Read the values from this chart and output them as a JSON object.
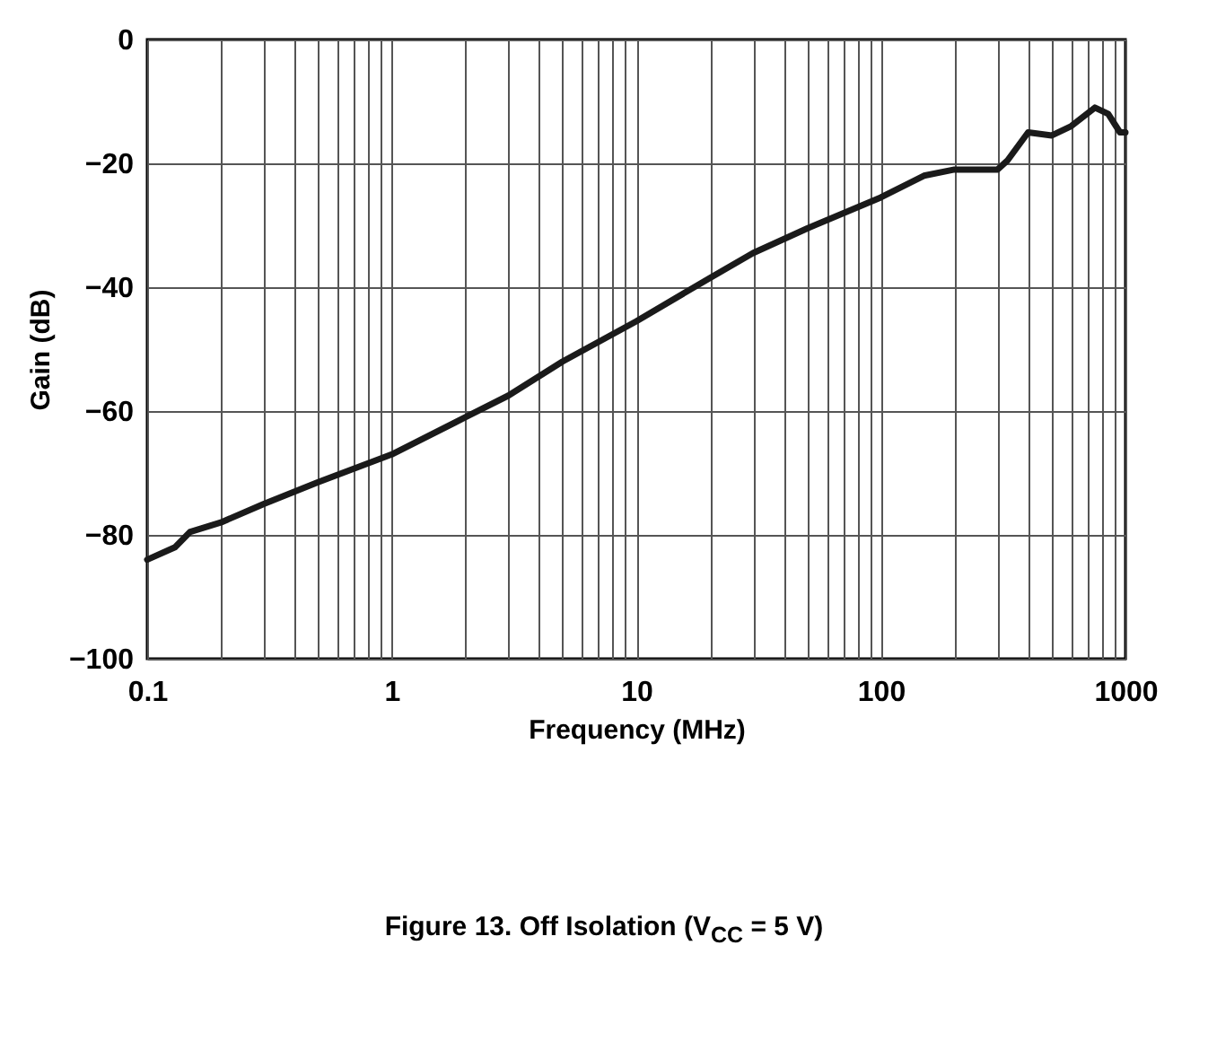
{
  "chart_data": {
    "type": "line",
    "title": "Figure 13. Off Isolation (V$_{CC}$ = 5 V)",
    "xlabel": "Frequency (MHz)",
    "ylabel": "Gain (dB)",
    "log": "x",
    "grid": true,
    "marker": "none",
    "line_style": "solid",
    "legend": false,
    "xlim": [
      0.1,
      1000
    ],
    "ylim": [
      -100,
      0
    ],
    "xticks": [
      0.1,
      {
        "value": 0.2,
        "label": null
      },
      {
        "value": 0.3,
        "label": null
      },
      {
        "value": 0.4,
        "label": null
      },
      {
        "value": 0.5,
        "label": null
      },
      {
        "value": 0.6,
        "label": null
      },
      {
        "value": 0.7,
        "label": null
      },
      {
        "value": 0.8,
        "label": null
      },
      {
        "value": 0.9,
        "label": null
      },
      1,
      {
        "value": 2,
        "label": null
      },
      {
        "value": 3,
        "label": null
      },
      {
        "value": 4,
        "label": null
      },
      {
        "value": 5,
        "label": null
      },
      {
        "value": 6,
        "label": null
      },
      {
        "value": 7,
        "label": null
      },
      {
        "value": 8,
        "label": null
      },
      {
        "value": 9,
        "label": null
      },
      10,
      {
        "value": 20,
        "label": null
      },
      {
        "value": 30,
        "label": null
      },
      {
        "value": 40,
        "label": null
      },
      {
        "value": 50,
        "label": null
      },
      {
        "value": 60,
        "label": null
      },
      {
        "value": 70,
        "label": null
      },
      {
        "value": 80,
        "label": null
      },
      {
        "value": 90,
        "label": null
      },
      100,
      {
        "value": 200,
        "label": null
      },
      {
        "value": 300,
        "label": null
      },
      {
        "value": 400,
        "label": null
      },
      {
        "value": 500,
        "label": null
      },
      {
        "value": 600,
        "label": null
      },
      {
        "value": 700,
        "label": null
      },
      {
        "value": 800,
        "label": null
      },
      {
        "value": 900,
        "label": null
      },
      1000
    ],
    "yticks": [
      -100,
      -80,
      -60,
      -40,
      -20,
      0
    ],
    "x": [
      0.1,
      0.13,
      0.15,
      0.2,
      0.3,
      0.5,
      1,
      2,
      3,
      5,
      10,
      20,
      30,
      50,
      100,
      150,
      200,
      300,
      330,
      400,
      500,
      600,
      750,
      850,
      950,
      1000
    ],
    "series": [
      {
        "color": "#1a1a1a",
        "values": [
          -84,
          -82,
          -79.5,
          -78,
          -75,
          -71.5,
          -67,
          -61,
          -57.5,
          -52,
          -45.5,
          -38.5,
          -34.5,
          -30.5,
          -25.5,
          -22,
          -21,
          -21,
          -19.5,
          -15,
          -15.5,
          -14,
          -11,
          -12,
          -15,
          -15
        ]
      }
    ]
  }
}
